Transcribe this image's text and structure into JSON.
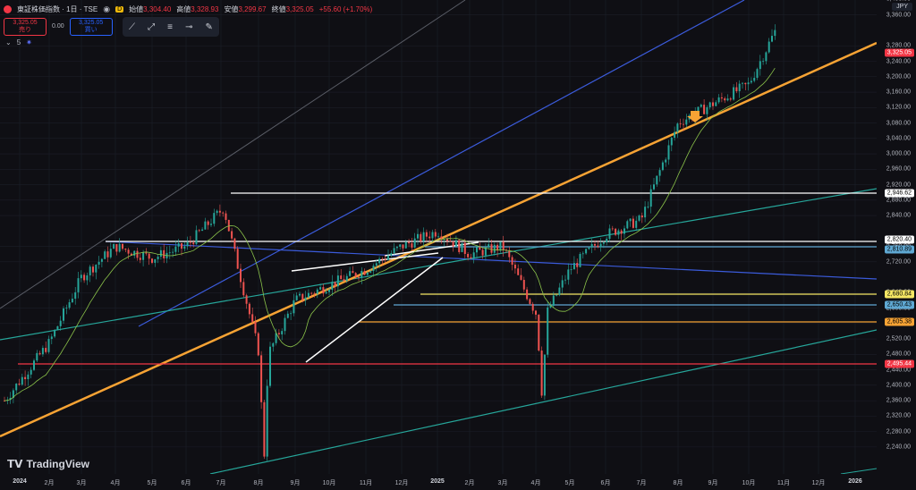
{
  "header": {
    "title": "東証株価指数 · 1日 · TSE",
    "open_label": "始値",
    "open": "3,304.40",
    "high_label": "高値",
    "high": "3,328.93",
    "low_label": "安値",
    "low": "3,299.67",
    "close_label": "終値",
    "close": "3,325.05",
    "change": "+55.60 (+1.70%)",
    "badge": "D"
  },
  "trade": {
    "sell_price": "3,325.05",
    "sell_label": "売り",
    "spread": "0.00",
    "buy_price": "3,325.05",
    "buy_label": "買い"
  },
  "indicator": {
    "label": "5"
  },
  "yaxis": {
    "currency": "JPY",
    "ticks": [
      "3,400.00",
      "3,360.00",
      "3,280.00",
      "3,240.00",
      "3,200.00",
      "3,160.00",
      "3,120.00",
      "3,080.00",
      "3,040.00",
      "3,000.00",
      "2,960.00",
      "2,920.00",
      "2,880.00",
      "2,840.00",
      "2,760.00",
      "2,720.00",
      "2,640.00",
      "2,600.00",
      "2,560.00",
      "2,520.00",
      "2,480.00",
      "2,440.00",
      "2,400.00",
      "2,360.00",
      "2,320.00",
      "2,280.00",
      "2,240.00"
    ]
  },
  "levels": {
    "current": {
      "label": "3,325.05",
      "color": "#f23645"
    },
    "l1": {
      "label": "2,946.62",
      "color": "#ffffff"
    },
    "l2": {
      "label": "2,820.40",
      "color": "#ffffff"
    },
    "l3": {
      "label": "2,810.89",
      "color": "#5fa8d3"
    },
    "l4": {
      "label": "2,680.84",
      "color": "#f5e663"
    },
    "l5": {
      "label": "2,650.43",
      "color": "#5fa8d3"
    },
    "l6": {
      "label": "2,605.38",
      "color": "#f7a334"
    },
    "l7": {
      "label": "2,495.44",
      "color": "#f23645"
    }
  },
  "xaxis": {
    "ticks": [
      "2024",
      "2月",
      "3月",
      "4月",
      "5月",
      "6月",
      "7月",
      "8月",
      "9月",
      "10月",
      "11月",
      "12月",
      "2025",
      "2月",
      "3月",
      "4月",
      "5月",
      "6月",
      "7月",
      "8月",
      "9月",
      "10月",
      "11月",
      "12月",
      "2026"
    ]
  },
  "brand": {
    "name": "TradingView"
  },
  "chart_data": {
    "type": "line",
    "title": "東証株価指数 · 1日 · TSE",
    "series": [
      {
        "x": [
          "2024-01",
          "2024-02",
          "2024-03",
          "2024-04",
          "2024-05",
          "2024-06",
          "2024-07",
          "2024-08",
          "2024-09",
          "2024-10",
          "2024-11",
          "2024-12",
          "2025-01",
          "2025-02",
          "2025-03",
          "2025-04",
          "2025-05",
          "2025-06",
          "2025-07",
          "2025-08",
          "2025-09",
          "2025-10",
          "2025-10-late"
        ],
        "values": [
          2360,
          2510,
          2680,
          2760,
          2730,
          2760,
          2860,
          2450,
          2620,
          2660,
          2700,
          2760,
          2800,
          2740,
          2760,
          2560,
          2700,
          2790,
          2830,
          3080,
          3130,
          3180,
          3325
        ]
      }
    ],
    "ylim": [
      2200,
      3420
    ]
  }
}
